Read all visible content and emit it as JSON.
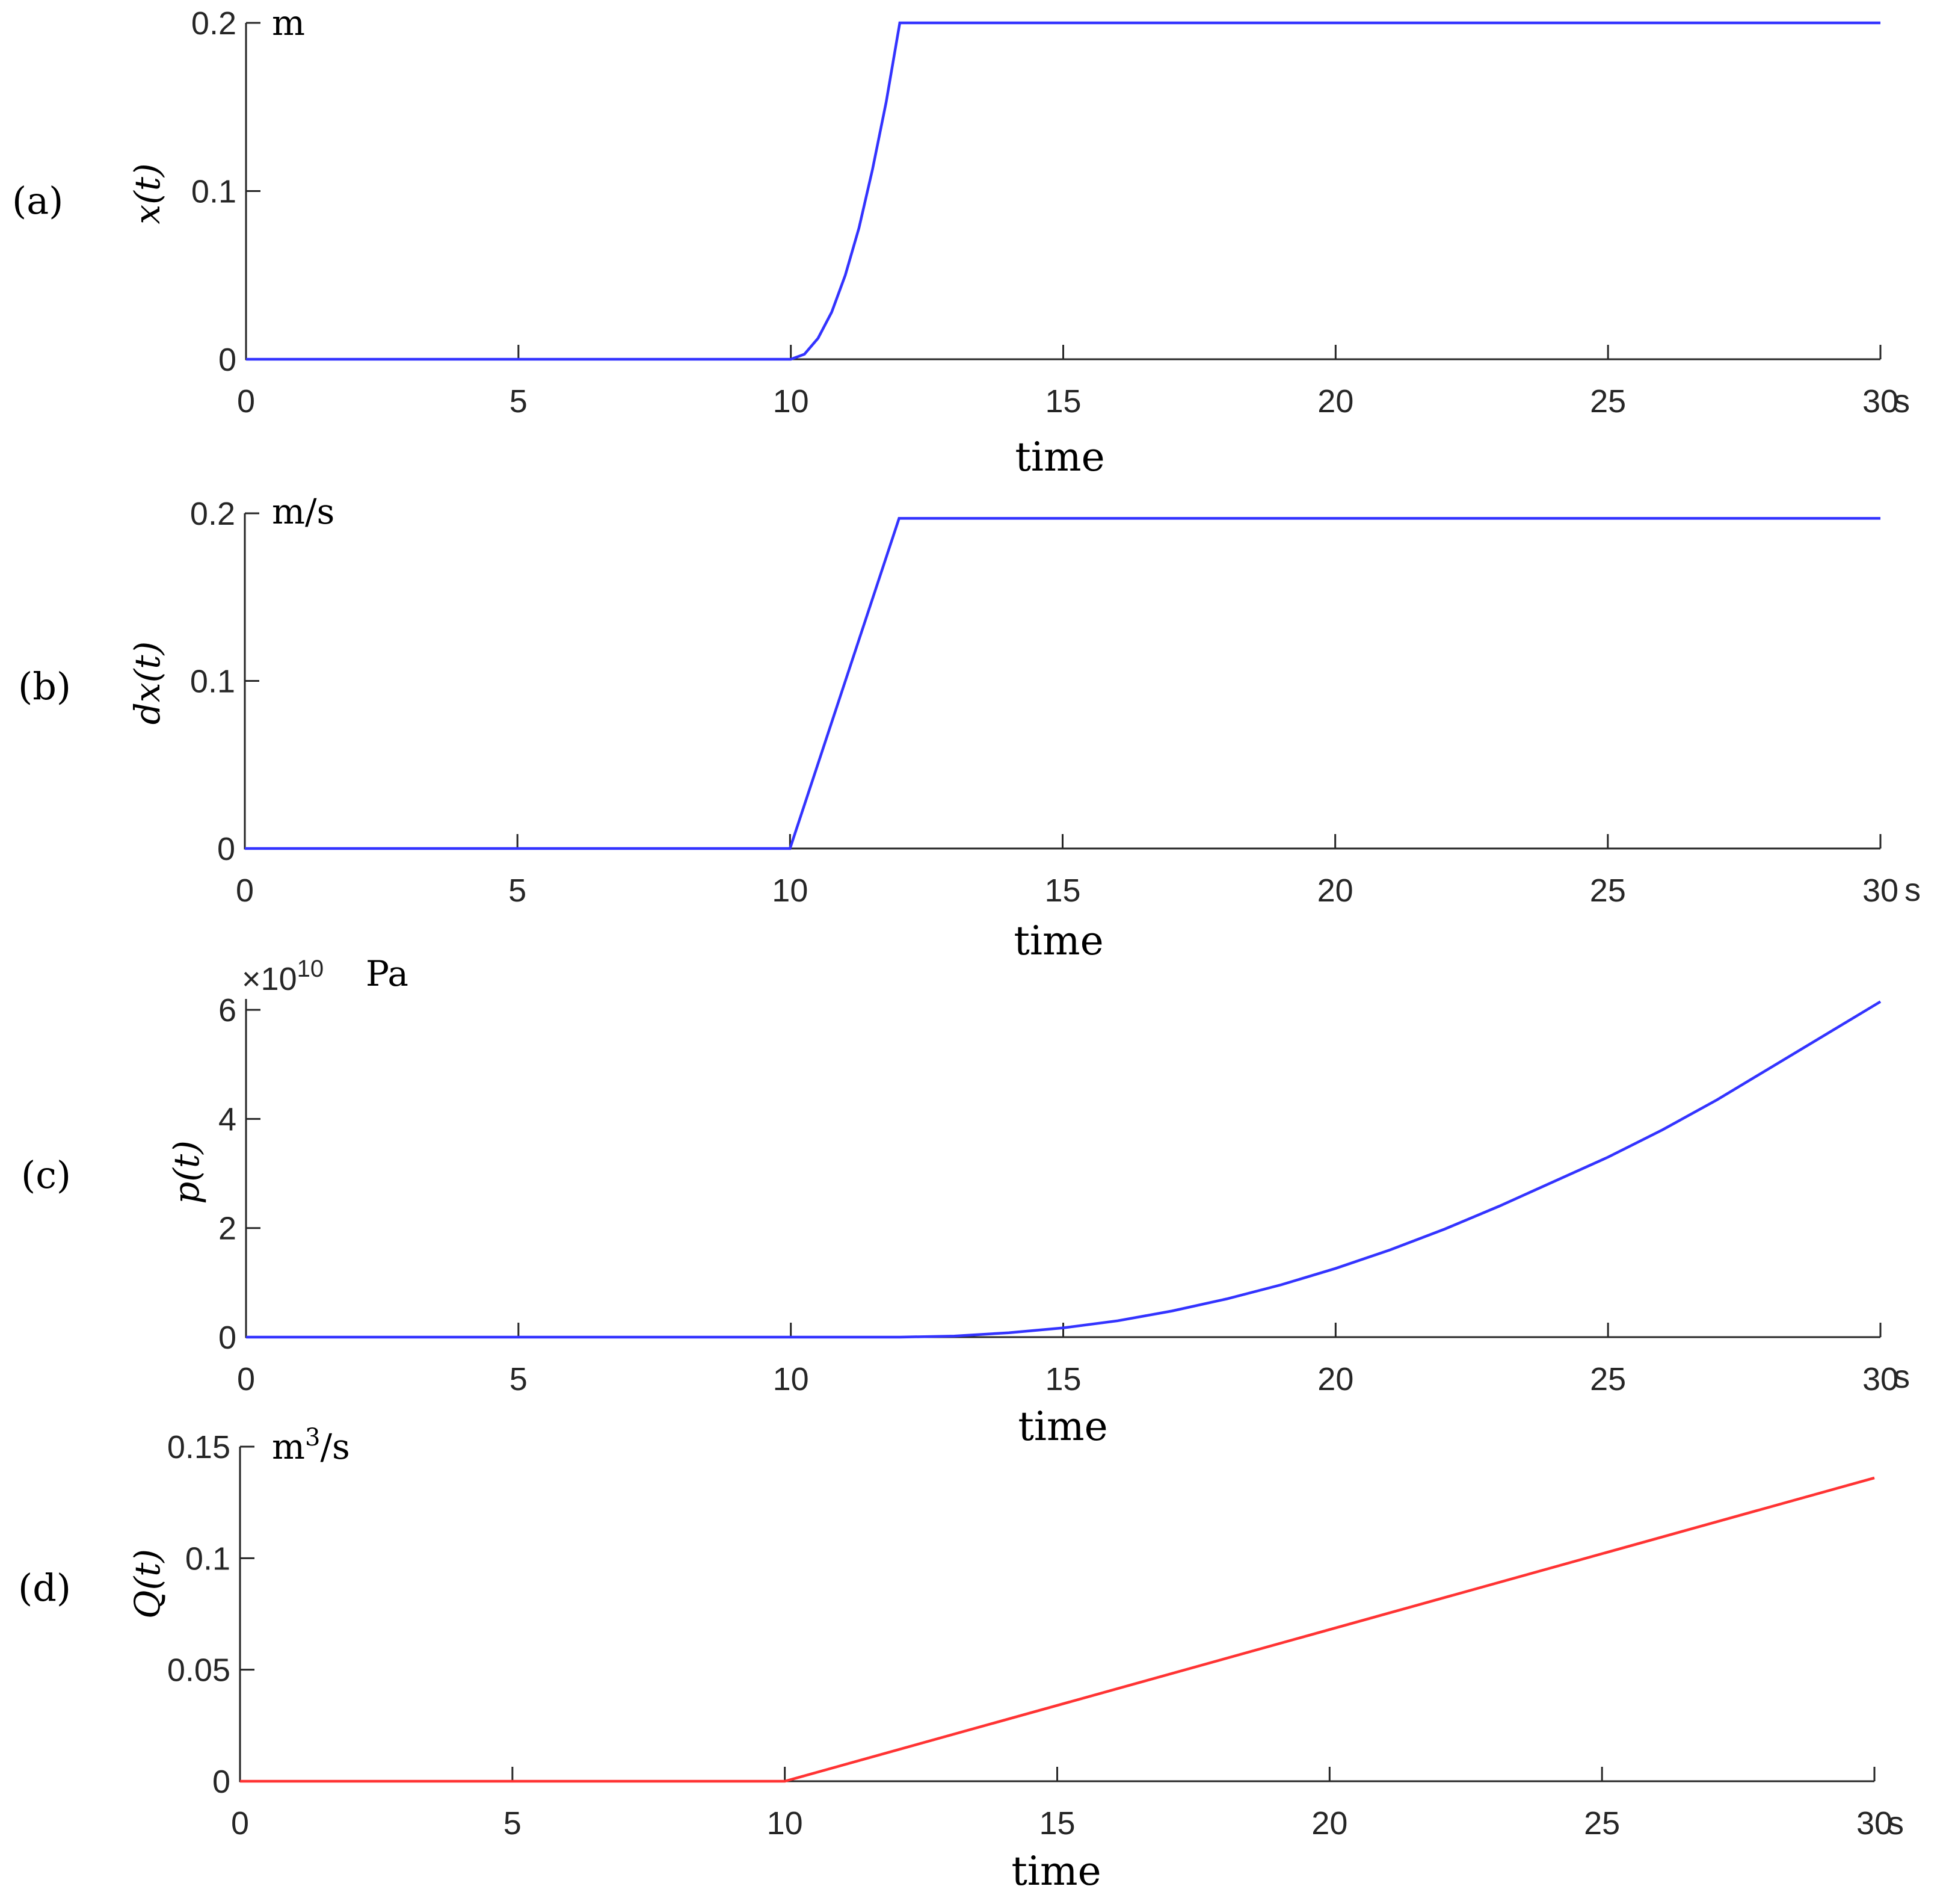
{
  "chart_data": [
    {
      "type": "line",
      "panel_label": "(a)",
      "ylabel": "x(t)",
      "unit": "m",
      "xlabel": "time",
      "x_unit": "s",
      "xlim": [
        0,
        30
      ],
      "ylim": [
        0,
        0.2
      ],
      "xticks": [
        0,
        5,
        10,
        15,
        20,
        25,
        30
      ],
      "xtick_labels": [
        "0",
        "5",
        "10",
        "15",
        "20",
        "25",
        "30"
      ],
      "yticks": [
        0,
        0.1,
        0.2
      ],
      "ytick_labels": [
        "0",
        "0.1",
        "0.2"
      ],
      "series": [
        {
          "color": "#3333ff",
          "x": [
            0,
            10,
            10.25,
            10.5,
            10.75,
            11,
            11.25,
            11.5,
            11.75,
            12,
            30
          ],
          "y": [
            0,
            0,
            0.003,
            0.0125,
            0.028,
            0.05,
            0.078,
            0.113,
            0.153,
            0.2,
            0.2
          ]
        }
      ]
    },
    {
      "type": "line",
      "panel_label": "(b)",
      "ylabel": "dx(t)",
      "unit": "m/s",
      "xlabel": "time",
      "x_unit": "s",
      "xlim": [
        0,
        30
      ],
      "ylim": [
        0,
        0.2
      ],
      "xticks": [
        0,
        5,
        10,
        15,
        20,
        25,
        30
      ],
      "xtick_labels": [
        "0",
        "5",
        "10",
        "15",
        "20",
        "25",
        "30"
      ],
      "yticks": [
        0,
        0.1,
        0.2
      ],
      "ytick_labels": [
        "0",
        "0.1",
        "0.2"
      ],
      "series": [
        {
          "color": "#3333ff",
          "x": [
            0,
            10,
            12,
            30
          ],
          "y": [
            0,
            0,
            0.197,
            0.197
          ]
        }
      ]
    },
    {
      "type": "line",
      "panel_label": "(c)",
      "ylabel": "p(t)",
      "unit": "Pa",
      "exponent_label": "×10",
      "exponent_power": "10",
      "xlabel": "time",
      "x_unit": "s",
      "xlim": [
        0,
        30
      ],
      "ylim": [
        0,
        6.2
      ],
      "xticks": [
        0,
        5,
        10,
        15,
        20,
        25,
        30
      ],
      "xtick_labels": [
        "0",
        "5",
        "10",
        "15",
        "20",
        "25",
        "30"
      ],
      "yticks": [
        0,
        2,
        4,
        6
      ],
      "ytick_labels": [
        "0",
        "2",
        "4",
        "6"
      ],
      "series": [
        {
          "color": "#3333ff",
          "x": [
            0,
            12,
            13,
            14,
            15,
            16,
            17,
            18,
            19,
            20,
            21,
            22,
            23,
            24,
            25,
            26,
            27,
            28,
            29,
            30
          ],
          "y": [
            0,
            0,
            0.02,
            0.08,
            0.17,
            0.3,
            0.48,
            0.7,
            0.96,
            1.26,
            1.6,
            1.98,
            2.4,
            2.85,
            3.3,
            3.8,
            4.35,
            4.95,
            5.55,
            6.15
          ]
        }
      ]
    },
    {
      "type": "line",
      "panel_label": "(d)",
      "ylabel": "Q(t)",
      "unit": "m",
      "unit_power": "3",
      "unit_suffix": "/s",
      "xlabel": "time",
      "x_unit": "s",
      "xlim": [
        0,
        30
      ],
      "ylim": [
        0,
        0.15
      ],
      "xticks": [
        0,
        5,
        10,
        15,
        20,
        25,
        30
      ],
      "xtick_labels": [
        "0",
        "5",
        "10",
        "15",
        "20",
        "25",
        "30"
      ],
      "yticks": [
        0,
        0.05,
        0.1,
        0.15
      ],
      "ytick_labels": [
        "0",
        "0.05",
        "0.1",
        "0.15"
      ],
      "series": [
        {
          "color": "#ff3333",
          "x": [
            0,
            10,
            30
          ],
          "y": [
            0,
            0,
            0.136
          ]
        }
      ]
    }
  ]
}
